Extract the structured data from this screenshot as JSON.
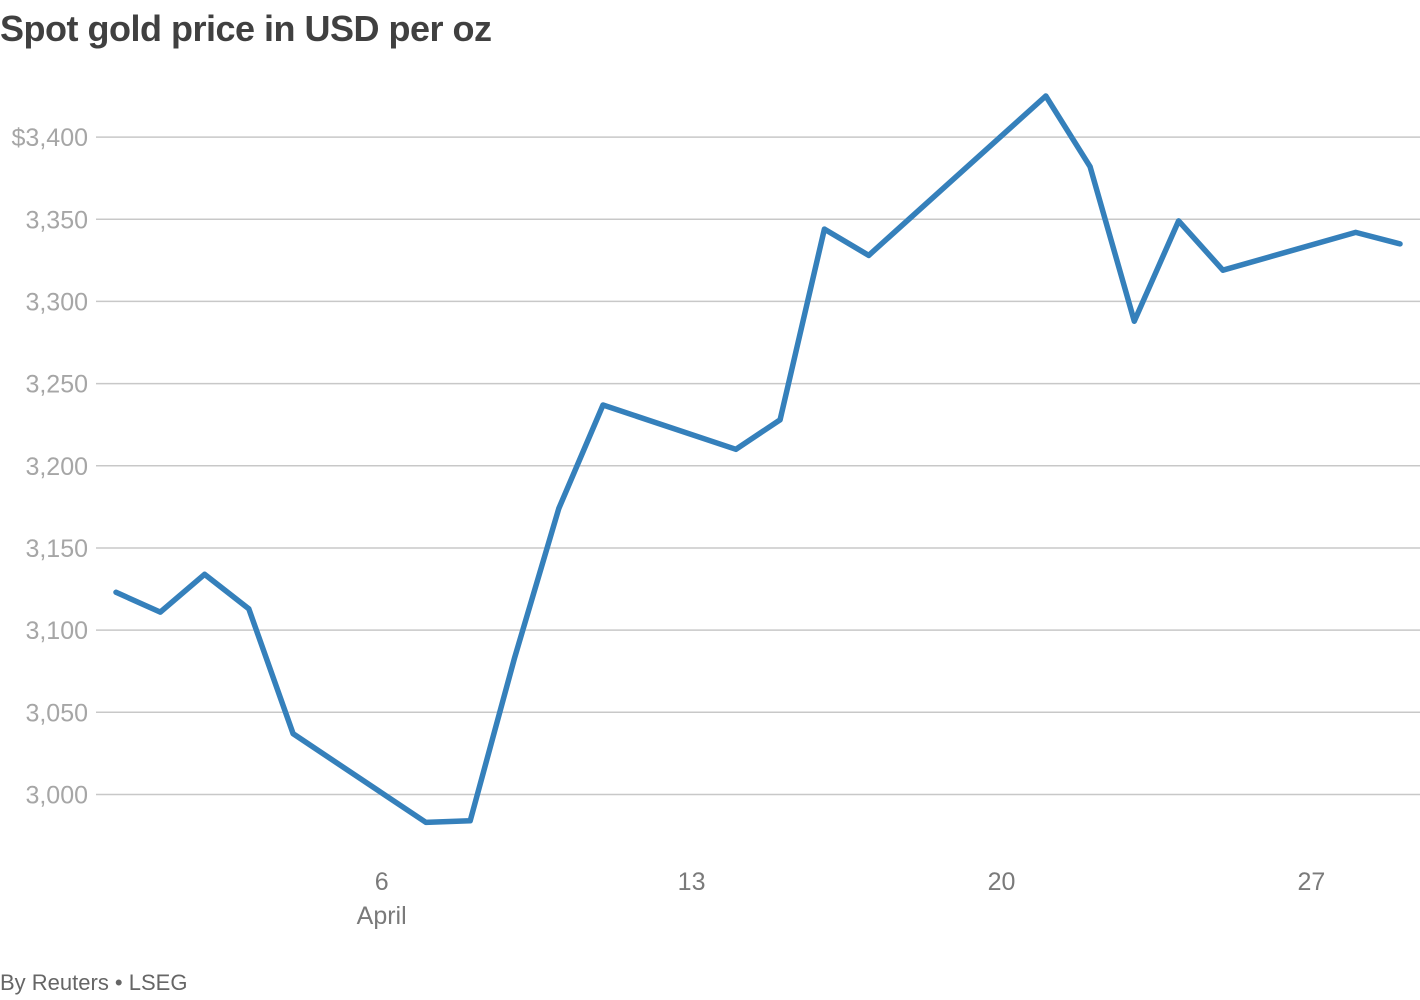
{
  "chart_data": {
    "type": "line",
    "title": "Spot gold price in USD per oz",
    "source": "By Reuters • LSEG",
    "xlabel": "",
    "ylabel": "",
    "ylim": [
      2965,
      3425
    ],
    "xlim": [
      "2025-03-31",
      "2025-04-29"
    ],
    "grid": true,
    "y_ticks": [
      {
        "value": 3000,
        "label": "3,000"
      },
      {
        "value": 3050,
        "label": "3,050"
      },
      {
        "value": 3100,
        "label": "3,100"
      },
      {
        "value": 3150,
        "label": "3,150"
      },
      {
        "value": 3200,
        "label": "3,200"
      },
      {
        "value": 3250,
        "label": "3,250"
      },
      {
        "value": 3300,
        "label": "3,300"
      },
      {
        "value": 3350,
        "label": "3,350"
      },
      {
        "value": 3400,
        "label": "$3,400"
      }
    ],
    "x_ticks": [
      {
        "date": "2025-04-06",
        "label": "6",
        "sublabel": "April"
      },
      {
        "date": "2025-04-13",
        "label": "13",
        "sublabel": ""
      },
      {
        "date": "2025-04-20",
        "label": "20",
        "sublabel": ""
      },
      {
        "date": "2025-04-27",
        "label": "27",
        "sublabel": ""
      }
    ],
    "series": [
      {
        "color": "#3580bb",
        "points": [
          {
            "x": "2025-03-31",
            "y": 3123
          },
          {
            "x": "2025-04-01",
            "y": 3111
          },
          {
            "x": "2025-04-02",
            "y": 3134
          },
          {
            "x": "2025-04-03",
            "y": 3113
          },
          {
            "x": "2025-04-04",
            "y": 3037
          },
          {
            "x": "2025-04-07",
            "y": 2983
          },
          {
            "x": "2025-04-08",
            "y": 2984
          },
          {
            "x": "2025-04-09",
            "y": 3083
          },
          {
            "x": "2025-04-10",
            "y": 3174
          },
          {
            "x": "2025-04-11",
            "y": 3237
          },
          {
            "x": "2025-04-14",
            "y": 3210
          },
          {
            "x": "2025-04-15",
            "y": 3228
          },
          {
            "x": "2025-04-16",
            "y": 3344
          },
          {
            "x": "2025-04-17",
            "y": 3328
          },
          {
            "x": "2025-04-21",
            "y": 3425
          },
          {
            "x": "2025-04-22",
            "y": 3382
          },
          {
            "x": "2025-04-23",
            "y": 3288
          },
          {
            "x": "2025-04-24",
            "y": 3349
          },
          {
            "x": "2025-04-25",
            "y": 3319
          },
          {
            "x": "2025-04-28",
            "y": 3342
          },
          {
            "x": "2025-04-29",
            "y": 3335
          }
        ]
      }
    ]
  }
}
